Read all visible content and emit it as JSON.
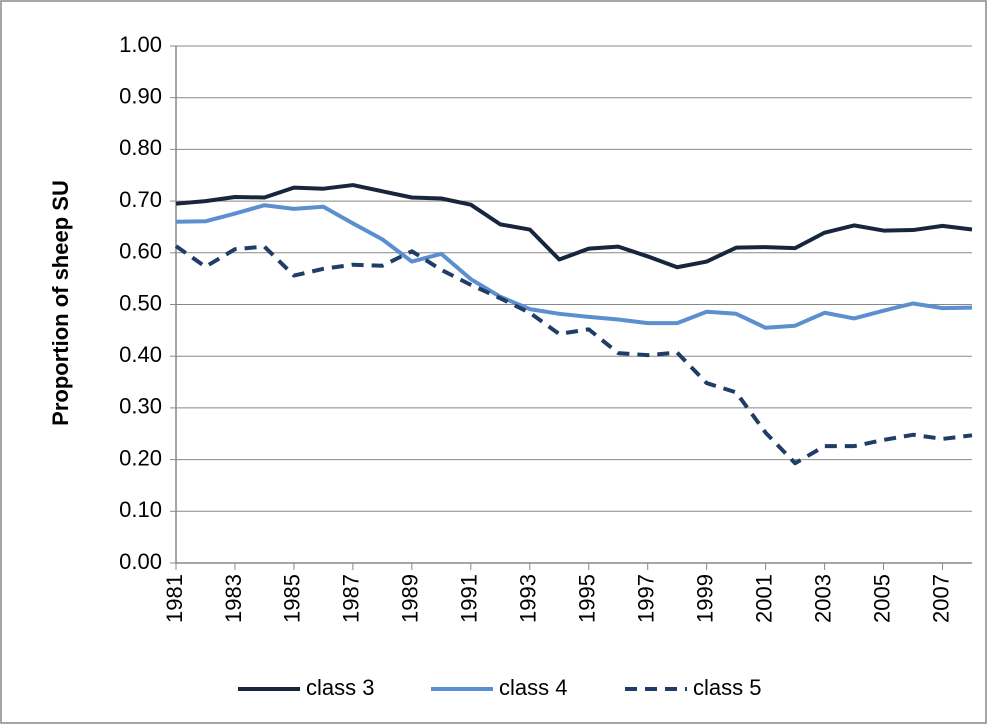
{
  "chart_data": {
    "type": "line",
    "y_label": "Proportion of sheep SU",
    "x": [
      1981,
      1982,
      1983,
      1984,
      1985,
      1986,
      1987,
      1988,
      1989,
      1990,
      1991,
      1992,
      1993,
      1994,
      1995,
      1996,
      1997,
      1998,
      1999,
      2000,
      2001,
      2002,
      2003,
      2004,
      2005,
      2006,
      2007,
      2008
    ],
    "xlim": [
      1981,
      2008
    ],
    "xticks": [
      1981,
      1983,
      1985,
      1987,
      1989,
      1991,
      1993,
      1995,
      1997,
      1999,
      2001,
      2003,
      2005,
      2007
    ],
    "ylim": [
      0,
      1
    ],
    "yticks": [
      {
        "value": 0,
        "label": "0.00"
      },
      {
        "value": 0.1,
        "label": "0.10"
      },
      {
        "value": 0.2,
        "label": "0.20"
      },
      {
        "value": 0.3,
        "label": "0.30"
      },
      {
        "value": 0.4,
        "label": "0.40"
      },
      {
        "value": 0.5,
        "label": "0.50"
      },
      {
        "value": 0.6,
        "label": "0.60"
      },
      {
        "value": 0.7,
        "label": "0.70"
      },
      {
        "value": 0.8,
        "label": "0.80"
      },
      {
        "value": 0.9,
        "label": "0.90"
      },
      {
        "value": 1,
        "label": "1.00"
      }
    ],
    "grid": true,
    "legend": "bottom",
    "series": [
      {
        "name": "class 3",
        "color": "#17263d",
        "style": "solid",
        "values": [
          0.695,
          0.7,
          0.708,
          0.707,
          0.726,
          0.724,
          0.731,
          0.719,
          0.707,
          0.705,
          0.693,
          0.655,
          0.645,
          0.587,
          0.608,
          0.612,
          0.593,
          0.572,
          0.583,
          0.61,
          0.611,
          0.609,
          0.639,
          0.653,
          0.643,
          0.644,
          0.652,
          0.645
        ]
      },
      {
        "name": "class 4",
        "color": "#5b8fcf",
        "style": "solid",
        "values": [
          0.66,
          0.661,
          0.676,
          0.692,
          0.685,
          0.689,
          0.657,
          0.626,
          0.583,
          0.598,
          0.549,
          0.515,
          0.491,
          0.482,
          0.476,
          0.471,
          0.464,
          0.464,
          0.486,
          0.482,
          0.455,
          0.459,
          0.484,
          0.473,
          0.488,
          0.502,
          0.493,
          0.494
        ]
      },
      {
        "name": "class 5",
        "color": "#1f3d66",
        "style": "dashed",
        "values": [
          0.613,
          0.573,
          0.607,
          0.612,
          0.556,
          0.569,
          0.577,
          0.575,
          0.603,
          0.567,
          0.538,
          0.512,
          0.484,
          0.443,
          0.452,
          0.406,
          0.402,
          0.407,
          0.348,
          0.33,
          0.252,
          0.193,
          0.226,
          0.226,
          0.238,
          0.248,
          0.24,
          0.247
        ]
      }
    ]
  }
}
